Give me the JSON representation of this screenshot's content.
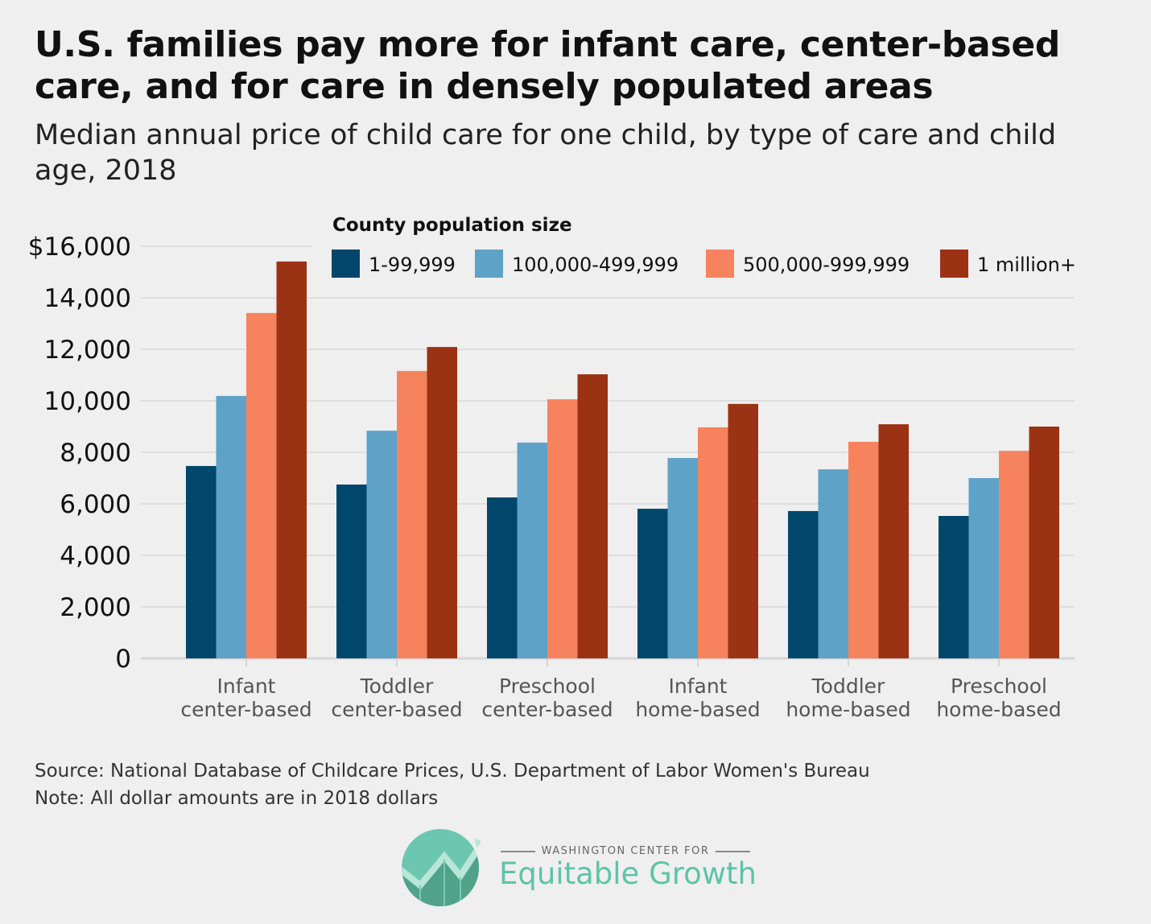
{
  "title": "U.S. families pay more for infant care, center-based care, and for care in densely populated areas",
  "subtitle": "Median annual price of child care for one child, by type of care and child age, 2018",
  "source": "Source: National Database of Childcare Prices, U.S. Department of Labor Women's Bureau",
  "note": "Note: All dollar amounts are in 2018 dollars",
  "logo": {
    "top_text": "WASHINGTON CENTER FOR",
    "main_text": "Equitable Growth",
    "color": "#5dc4a4"
  },
  "chart_data": {
    "type": "bar",
    "title": "",
    "xlabel": "",
    "ylabel": "",
    "ylim": [
      0,
      16000
    ],
    "yticks": [
      0,
      2000,
      4000,
      6000,
      8000,
      10000,
      12000,
      14000,
      16000
    ],
    "ytick_labels": [
      "0",
      "2,000",
      "4,000",
      "6,000",
      "8,000",
      "10,000",
      "12,000",
      "14,000",
      "$16,000"
    ],
    "grid": true,
    "legend_title": "County population size",
    "legend_placement": "top",
    "categories": [
      [
        "Infant",
        "center-based"
      ],
      [
        "Toddler",
        "center-based"
      ],
      [
        "Preschool",
        "center-based"
      ],
      [
        "Infant",
        "home-based"
      ],
      [
        "Toddler",
        "home-based"
      ],
      [
        "Preschool",
        "home-based"
      ]
    ],
    "series": [
      {
        "name": "1-99,999",
        "color": "#00476b",
        "values": [
          7470,
          6750,
          6250,
          5810,
          5720,
          5530
        ]
      },
      {
        "name": "100,000-499,999",
        "color": "#5ea2c8",
        "values": [
          10190,
          8840,
          8380,
          7780,
          7340,
          7000
        ]
      },
      {
        "name": "500,000-999,999",
        "color": "#f7835e",
        "values": [
          13410,
          11160,
          10060,
          8970,
          8410,
          8060
        ]
      },
      {
        "name": "1 million+",
        "color": "#9b3214",
        "values": [
          15410,
          12090,
          11030,
          9880,
          9090,
          9000
        ]
      }
    ]
  }
}
